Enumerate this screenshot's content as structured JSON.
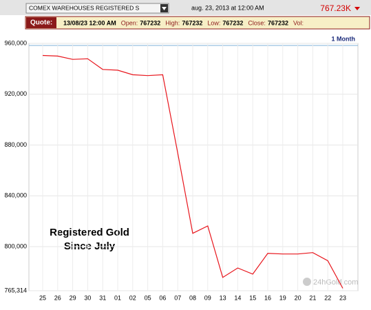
{
  "header": {
    "instrument": "COMEX WAREHOUSES REGISTERED S",
    "timestamp": "aug. 23, 2013 at 12:00 AM",
    "last": "767.23K"
  },
  "quote": {
    "label": "Quote:",
    "datetime": "13/08/23 12:00 AM",
    "open_label": "Open:",
    "open": "767232",
    "high_label": "High:",
    "high": "767232",
    "low_label": "Low:",
    "low": "767232",
    "close_label": "Close:",
    "close": "767232",
    "vol_label": "Vol:"
  },
  "chart_data": {
    "type": "line",
    "range_label": "1 Month",
    "annotations": [
      "Registered Gold",
      "Since July"
    ],
    "watermark": "24hGold.com",
    "categories": [
      "25",
      "26",
      "29",
      "30",
      "31",
      "01",
      "02",
      "05",
      "06",
      "07",
      "08",
      "09",
      "13",
      "14",
      "15",
      "16",
      "19",
      "20",
      "21",
      "22",
      "23"
    ],
    "values": [
      950500,
      950000,
      947400,
      947900,
      939500,
      938900,
      935300,
      934700,
      935300,
      873700,
      810500,
      816300,
      775800,
      783200,
      778400,
      794700,
      794200,
      794200,
      795300,
      788900,
      767232
    ],
    "color": "#e8141b",
    "ylim": [
      765314,
      960000
    ],
    "yticks": [
      {
        "value": 765314,
        "label": "765,314"
      },
      {
        "value": 800000,
        "label": "800,000"
      },
      {
        "value": 840000,
        "label": "840,000"
      },
      {
        "value": 880000,
        "label": "880,000"
      },
      {
        "value": 920000,
        "label": "920,000"
      },
      {
        "value": 960000,
        "label": "960,000"
      }
    ],
    "grid": true
  }
}
